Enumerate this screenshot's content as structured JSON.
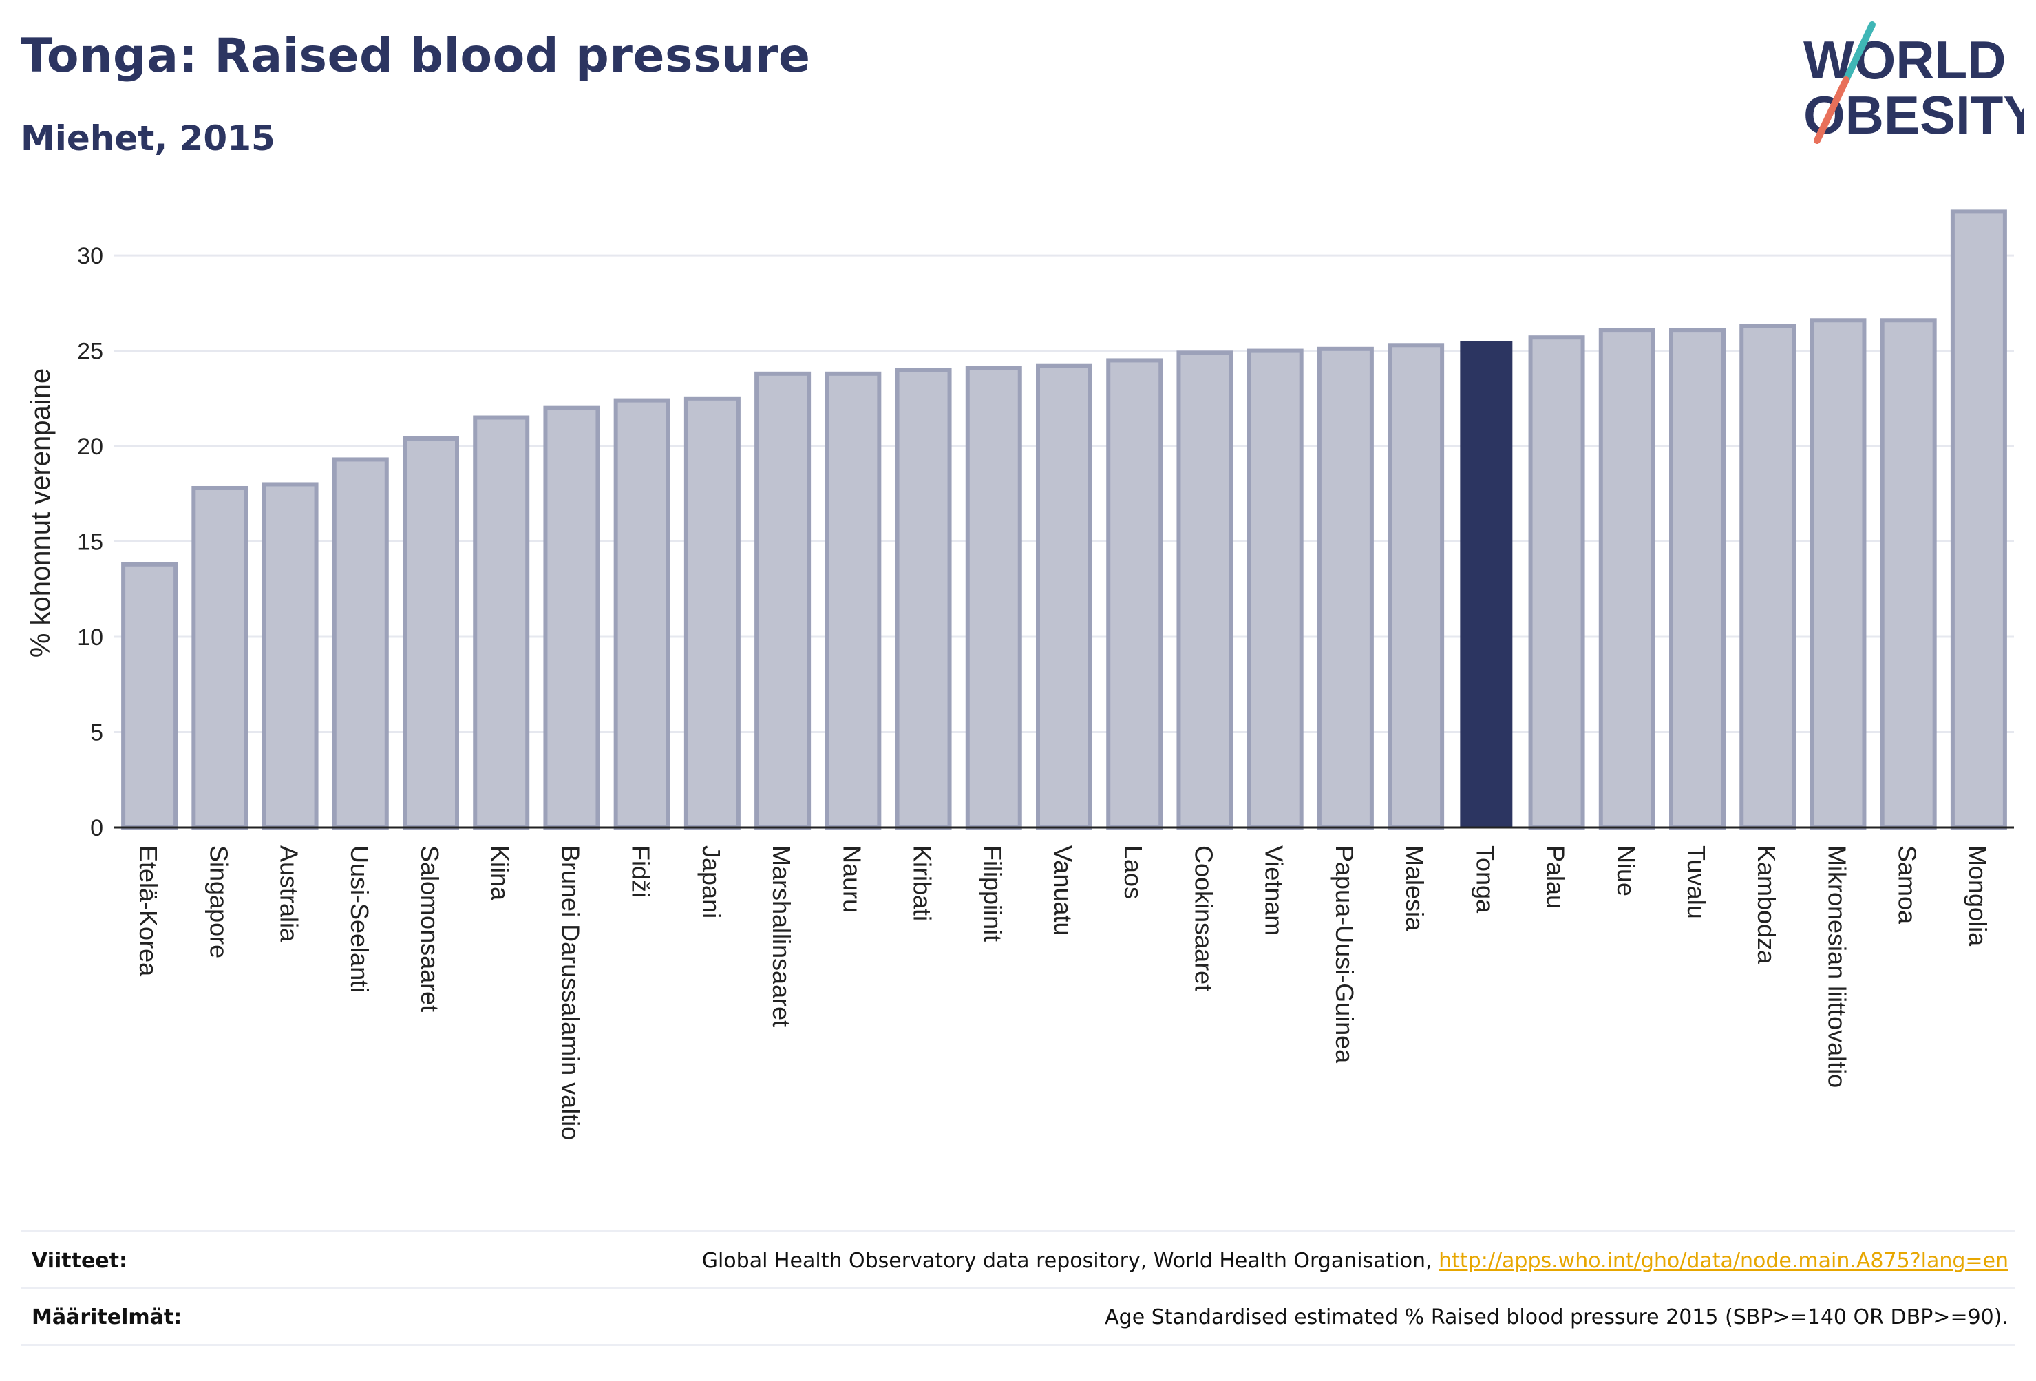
{
  "header": {
    "title": "Tonga: Raised blood pressure",
    "subtitle": "Miehet, 2015"
  },
  "logo": {
    "line1": "WORLD",
    "line2": "OBESITY",
    "colors": {
      "text": "#2c3561",
      "slash_top": "#3fb6b6",
      "slash_bottom": "#e8705a"
    }
  },
  "chart_data": {
    "type": "bar",
    "ylabel": "% kohonnut verenpaine",
    "xlabel": "",
    "ylim": [
      0,
      33
    ],
    "yticks": [
      0,
      5,
      10,
      15,
      20,
      25,
      30
    ],
    "grid": true,
    "highlight": "Tonga",
    "colors": {
      "bar": "#bfc2d0",
      "bar_edge": "#9ca1b9",
      "highlight": "#2c3561",
      "grid": "#e6e8ef",
      "axis": "#222222"
    },
    "categories": [
      "Etelä-Korea",
      "Singapore",
      "Australia",
      "Uusi-Seelanti",
      "Salomonsaaret",
      "Kiina",
      "Brunei Darussalamin valtio",
      "Fidži",
      "Japani",
      "Marshallinsaaret",
      "Nauru",
      "Kiribati",
      "Filippiinit",
      "Vanuatu",
      "Laos",
      "Cookinsaaret",
      "Vietnam",
      "Papua-Uusi-Guinea",
      "Malesia",
      "Tonga",
      "Palau",
      "Niue",
      "Tuvalu",
      "Kambodza",
      "Mikronesian liittovaltio",
      "Samoa",
      "Mongolia"
    ],
    "values": [
      13.8,
      17.8,
      18.0,
      19.3,
      20.4,
      21.5,
      22.0,
      22.4,
      22.5,
      23.8,
      23.8,
      24.0,
      24.1,
      24.2,
      24.5,
      24.9,
      25.0,
      25.1,
      25.3,
      25.5,
      25.7,
      26.1,
      26.1,
      26.3,
      26.6,
      26.6,
      32.3
    ]
  },
  "footer": {
    "sources_label": "Viitteet:",
    "sources_text": "Global Health Observatory data repository, World Health Organisation, ",
    "sources_link": "http://apps.who.int/gho/data/node.main.A875?lang=en",
    "definitions_label": "Määritelmät:",
    "definitions_text": "Age Standardised estimated % Raised blood pressure 2015 (SBP>=140 OR DBP>=90)."
  }
}
